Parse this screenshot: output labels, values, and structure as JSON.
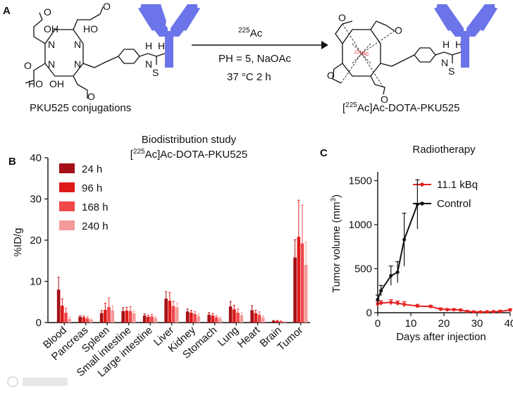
{
  "panels": {
    "a": "A",
    "b": "B",
    "c": "C"
  },
  "scheme": {
    "left_label": "PKU525 conjugations",
    "right_label_pre": "[",
    "right_label_sup": "225",
    "right_label_post": "Ac]Ac-DOTA-PKU525",
    "reagent_sup": "225",
    "reagent": "Ac",
    "condition1": "PH = 5, NaOAc",
    "condition2": "37 °C 2 h",
    "atoms": {
      "O": "O",
      "OH": "OH",
      "HO": "HO",
      "N": "N",
      "H": "H",
      "S": "S",
      "ac": "Ac",
      "ac_sup": "225"
    },
    "antibody_color": "#6b74e8",
    "accent_red": "#e53030"
  },
  "chart_data": [
    {
      "type": "bar",
      "title": "Biodistribution study",
      "subtitle_pre": "[",
      "subtitle_sup": "225",
      "subtitle_post": "Ac]Ac-DOTA-PKU525",
      "ylabel": "%ID/g",
      "ylim": [
        0,
        40
      ],
      "yticks": [
        0,
        10,
        20,
        30,
        40
      ],
      "categories": [
        "Blood",
        "Pancreas",
        "Spleen",
        "Small intestine",
        "Large intestine",
        "Liver",
        "Kidney",
        "Stomach",
        "Lung",
        "Heart",
        "Brain",
        "Tumor"
      ],
      "series": [
        {
          "name": "24 h",
          "color": "#a50f15",
          "values": [
            8.0,
            1.4,
            2.3,
            2.8,
            1.7,
            5.8,
            2.7,
            1.9,
            3.9,
            3.0,
            0.4,
            15.8
          ],
          "errors": [
            3.0,
            0.3,
            0.6,
            0.8,
            0.4,
            1.7,
            0.6,
            0.5,
            1.2,
            1.1,
            0.1,
            4.3
          ]
        },
        {
          "name": "96 h",
          "color": "#de1a1a",
          "values": [
            4.1,
            1.3,
            3.1,
            2.9,
            1.4,
            5.3,
            2.4,
            1.7,
            3.2,
            2.3,
            0.4,
            20.8
          ],
          "errors": [
            1.7,
            0.3,
            1.6,
            0.8,
            0.4,
            2.0,
            0.6,
            0.5,
            1.0,
            0.7,
            0.1,
            8.9
          ]
        },
        {
          "name": "168 h",
          "color": "#f0484b",
          "values": [
            2.4,
            1.0,
            3.8,
            2.8,
            1.5,
            4.0,
            2.1,
            1.3,
            2.4,
            1.9,
            0.3,
            19.2
          ],
          "errors": [
            1.1,
            0.4,
            2.2,
            1.1,
            0.5,
            1.2,
            0.6,
            0.4,
            0.9,
            0.7,
            0.1,
            9.3
          ]
        },
        {
          "name": "240 h",
          "color": "#f49a9a",
          "values": [
            0.9,
            0.7,
            3.0,
            2.2,
            1.1,
            3.7,
            1.6,
            1.0,
            1.8,
            1.2,
            0.2,
            14.0
          ],
          "errors": [
            0.4,
            0.2,
            1.1,
            0.6,
            0.3,
            1.1,
            0.5,
            0.3,
            0.6,
            0.4,
            0.05,
            5.5
          ]
        }
      ],
      "grid": false,
      "legend": "top-left"
    },
    {
      "type": "line",
      "title": "Radiotherapy",
      "xlabel": "Days after injection",
      "ylabel": "Tumor volume (mm³)",
      "ylabel_main": "Tumor volume (mm",
      "ylabel_sup": "3",
      "ylabel_end": ")",
      "xlim": [
        0,
        40
      ],
      "ylim": [
        0,
        1600
      ],
      "xticks": [
        0,
        10,
        20,
        30,
        40
      ],
      "yticks": [
        0,
        500,
        1000,
        1500
      ],
      "series": [
        {
          "name": "11.1 kBq",
          "color": "#e52222",
          "x": [
            0,
            1,
            4,
            6,
            8,
            12,
            16,
            19,
            21,
            23,
            25,
            27,
            29,
            31,
            33,
            35,
            37,
            40
          ],
          "y": [
            100,
            110,
            118,
            108,
            95,
            75,
            70,
            40,
            35,
            35,
            30,
            15,
            10,
            8,
            10,
            12,
            15,
            30
          ],
          "errors": [
            30,
            25,
            30,
            25,
            30,
            20,
            15,
            15,
            10,
            10,
            10,
            8,
            5,
            5,
            5,
            5,
            10,
            15
          ]
        },
        {
          "name": "Control",
          "color": "#111111",
          "x": [
            0,
            1,
            4,
            6,
            8,
            12
          ],
          "y": [
            150,
            250,
            420,
            460,
            830,
            1230
          ],
          "errors": [
            50,
            60,
            110,
            120,
            300,
            280
          ]
        }
      ],
      "grid": false,
      "legend": "top-left"
    }
  ]
}
